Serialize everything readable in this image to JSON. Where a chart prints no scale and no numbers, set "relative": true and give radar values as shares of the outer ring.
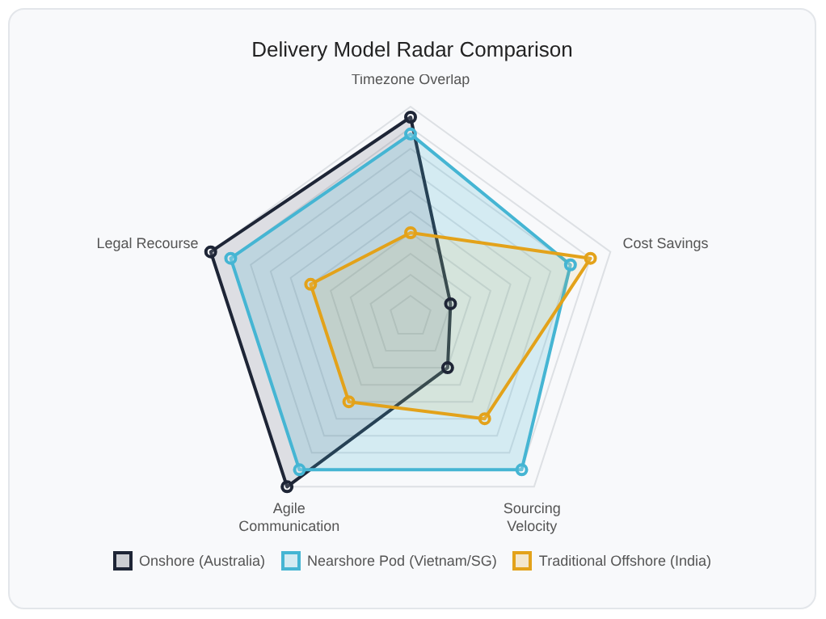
{
  "chart_data": {
    "type": "radar",
    "title": "Delivery Model Radar Comparison",
    "relative": true,
    "categories": [
      "Timezone Overlap",
      "Cost Savings",
      "Sourcing Velocity",
      "Agile Communication",
      "Legal Recourse"
    ],
    "legend": "bottom",
    "marker": "circle",
    "series": [
      {
        "name": "Onshore (Australia)",
        "color": "#1e2536",
        "values": [
          0.95,
          0.2,
          0.3,
          1.0,
          1.0
        ]
      },
      {
        "name": "Nearshore Pod (Vietnam/SG)",
        "color": "#45b5d3",
        "values": [
          0.87,
          0.8,
          0.9,
          0.9,
          0.9
        ]
      },
      {
        "name": "Traditional Offshore (India)",
        "color": "#e3a21a",
        "values": [
          0.4,
          0.9,
          0.6,
          0.5,
          0.5
        ]
      }
    ]
  }
}
